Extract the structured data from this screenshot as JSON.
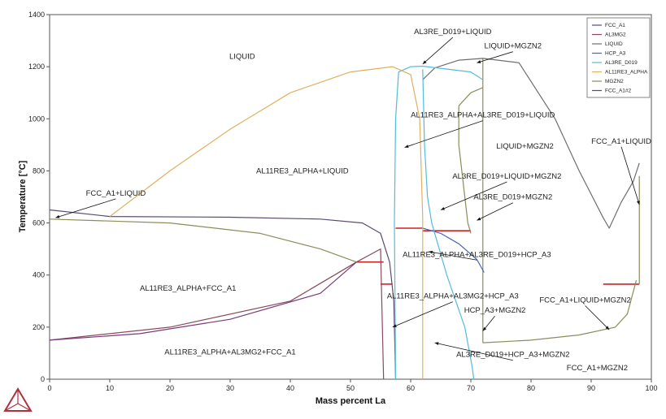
{
  "chart_data": {
    "type": "line",
    "title": "",
    "xlabel": "Mass percent La",
    "ylabel": "Temperature [°C]",
    "xlim": [
      0,
      100
    ],
    "ylim": [
      0,
      1400
    ],
    "xticks": [
      "0",
      "10",
      "20",
      "30",
      "40",
      "50",
      "60",
      "70",
      "80",
      "90",
      "100"
    ],
    "yticks": [
      "0",
      "200",
      "400",
      "600",
      "800",
      "1000",
      "1200",
      "1400"
    ],
    "grid": false,
    "legend_position": "top-right",
    "series": [
      {
        "name": "FCC_A1",
        "color": "#5a4b6e",
        "segments": [
          [
            [
              0,
              650
            ],
            [
              10,
              625
            ],
            [
              30,
              622
            ],
            [
              45,
              615
            ],
            [
              52,
              600
            ],
            [
              55,
              560
            ],
            [
              56.5,
              450
            ],
            [
              57.2,
              300
            ],
            [
              57.5,
              0
            ]
          ]
        ]
      },
      {
        "name": "AL3MG2",
        "color": "#8a4a5a",
        "segments": [
          [
            [
              0,
              150
            ],
            [
              20,
              200
            ],
            [
              40,
              300
            ],
            [
              51,
              450
            ],
            [
              55,
              500
            ],
            [
              55.5,
              0
            ]
          ]
        ]
      },
      {
        "name": "LIQUID",
        "color": "#6e6e6e",
        "segments": [
          [
            [
              62,
              1150
            ],
            [
              64,
              1195
            ],
            [
              68,
              1225
            ],
            [
              72,
              1232
            ],
            [
              78,
              1215
            ],
            [
              84,
              1000
            ],
            [
              88,
              800
            ],
            [
              92,
              620
            ],
            [
              93,
              580
            ],
            [
              95,
              680
            ],
            [
              97,
              760
            ],
            [
              98,
              830
            ]
          ]
        ]
      },
      {
        "name": "HCP_A3",
        "color": "#4466bb",
        "segments": [
          [
            [
              62,
              580
            ],
            [
              65,
              560
            ],
            [
              68,
              520
            ],
            [
              71,
              460
            ],
            [
              72.2,
              410
            ]
          ]
        ]
      },
      {
        "name": "AL3RE_D019",
        "color": "#55bbdd",
        "segments": [
          [
            [
              57.5,
              0
            ],
            [
              57.3,
              600
            ],
            [
              57.5,
              1000
            ],
            [
              58,
              1180
            ],
            [
              60,
              1200
            ],
            [
              62,
              1202
            ],
            [
              70,
              1180
            ],
            [
              72,
              1150
            ]
          ],
          [
            [
              62,
              1190
            ],
            [
              62.3,
              900
            ],
            [
              62.8,
              700
            ],
            [
              63.5,
              600
            ],
            [
              66,
              400
            ],
            [
              69,
              200
            ],
            [
              70.2,
              50
            ],
            [
              70.5,
              0
            ]
          ]
        ]
      },
      {
        "name": "AL11RE3_ALPHA",
        "color": "#e0b060",
        "segments": [
          [
            [
              10,
              625
            ],
            [
              20,
              800
            ],
            [
              30,
              960
            ],
            [
              40,
              1100
            ],
            [
              50,
              1180
            ],
            [
              57,
              1200
            ],
            [
              60,
              1170
            ],
            [
              61.5,
              1000
            ],
            [
              62,
              620
            ],
            [
              62,
              0
            ]
          ]
        ]
      },
      {
        "name": "MGZN2",
        "color": "#8c8c5a",
        "segments": [
          [
            [
              0,
              615
            ],
            [
              20,
              600
            ],
            [
              35,
              560
            ],
            [
              45,
              500
            ],
            [
              51,
              450
            ]
          ],
          [
            [
              72,
              140
            ],
            [
              80,
              150
            ],
            [
              88,
              170
            ],
            [
              94,
              200
            ],
            [
              96,
              250
            ],
            [
              97.5,
              380
            ]
          ],
          [
            [
              68,
              1050
            ],
            [
              70,
              1100
            ],
            [
              72,
              1120
            ]
          ],
          [
            [
              70,
              560
            ],
            [
              69.5,
              600
            ],
            [
              69,
              700
            ],
            [
              68,
              900
            ],
            [
              68,
              1050
            ]
          ]
        ]
      },
      {
        "name": "FCC_A1#2",
        "color": "#7a3a7a",
        "segments": [
          [
            [
              0,
              150
            ],
            [
              15,
              175
            ],
            [
              30,
              230
            ],
            [
              45,
              330
            ],
            [
              51,
              450
            ]
          ]
        ]
      }
    ],
    "legend_entries": [
      "FCC_A1",
      "AL3MG2",
      "LIQUID",
      "HCP_A3",
      "AL3RE_D019",
      "AL11RE3_ALPHA",
      "MGZN2",
      "FCC_A1#2"
    ],
    "tie_lines": {
      "color": "#cc2222",
      "segments": [
        [
          [
            51,
            450
          ],
          [
            55.5,
            450
          ]
        ],
        [
          [
            55,
            365
          ],
          [
            57,
            365
          ]
        ],
        [
          [
            57.5,
            580
          ],
          [
            62,
            580
          ]
        ],
        [
          [
            62,
            570
          ],
          [
            70,
            570
          ]
        ],
        [
          [
            92,
            365
          ],
          [
            98,
            365
          ]
        ],
        [
          [
            72,
            140
          ],
          [
            72,
            1230
          ]
        ],
        [
          [
            98,
            365
          ],
          [
            98,
            780
          ]
        ]
      ]
    },
    "annotations": [
      {
        "text": "LIQUID",
        "x": 32,
        "y": 1230
      },
      {
        "text": "AL3RE_D019+LIQUID",
        "x": 67,
        "y": 1325,
        "arrow_to": [
          62,
          1210
        ]
      },
      {
        "text": "LIQUID+MGZN2",
        "x": 77,
        "y": 1270,
        "arrow_to": [
          71,
          1215
        ]
      },
      {
        "text": "AL11RE3_ALPHA+AL3RE_D019+LIQUID",
        "x": 72,
        "y": 1005,
        "arrow_to": [
          59,
          890
        ]
      },
      {
        "text": "LIQUID+MGZN2",
        "x": 79,
        "y": 885
      },
      {
        "text": "AL11RE3_ALPHA+LIQUID",
        "x": 42,
        "y": 790
      },
      {
        "text": "FCC_A1+LIQUID",
        "x": 95,
        "y": 905,
        "arrow_to": [
          98,
          670
        ]
      },
      {
        "text": "AL3RE_D019+LIQUID+MGZN2",
        "x": 76,
        "y": 770,
        "arrow_to": [
          65,
          650
        ]
      },
      {
        "text": "FCC_A1+LIQUID",
        "x": 11,
        "y": 705,
        "arrow_to": [
          1,
          620
        ]
      },
      {
        "text": "AL3RE_D019+MGZN2",
        "x": 77,
        "y": 690,
        "arrow_to": [
          71,
          610
        ]
      },
      {
        "text": "AL11RE3_ALPHA+AL3RE_D019+HCP_A3",
        "x": 71,
        "y": 470,
        "arrow_to": [
          63,
          490
        ]
      },
      {
        "text": "AL11RE3_ALPHA+FCC_A1",
        "x": 23,
        "y": 340
      },
      {
        "text": "AL11RE3_ALPHA+AL3MG2+HCP_A3",
        "x": 67,
        "y": 310,
        "arrow_to": [
          57,
          200
        ]
      },
      {
        "text": "FCC_A1+LIQUID+MGZN2",
        "x": 89,
        "y": 295,
        "arrow_to": [
          93,
          190
        ]
      },
      {
        "text": "HCP_A3+MGZN2",
        "x": 74,
        "y": 255,
        "arrow_to": [
          72,
          185
        ]
      },
      {
        "text": "AL11RE3_ALPHA+AL3MG2+FCC_A1",
        "x": 30,
        "y": 95
      },
      {
        "text": "AL3RE_D019+HCP_A3+MGZN2",
        "x": 77,
        "y": 85,
        "arrow_to": [
          64,
          140
        ]
      },
      {
        "text": "FCC_A1+MGZN2",
        "x": 91,
        "y": 35
      }
    ]
  }
}
